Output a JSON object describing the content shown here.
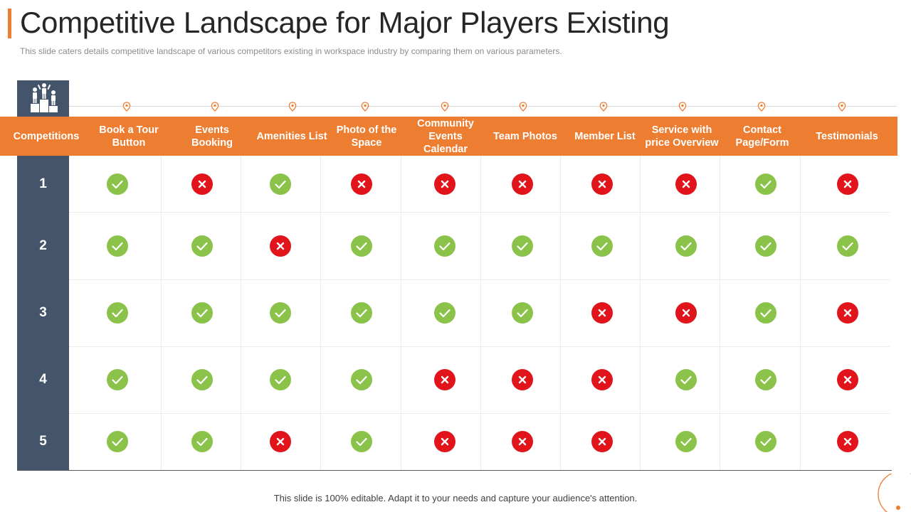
{
  "title": "Competitive Landscape for Major Players Existing",
  "subtitle": "This slide caters details competitive landscape of various  competitors existing in workspace industry by comparing them on various  parameters.",
  "table": {
    "corner_label": "Competitions",
    "columns": [
      "Book a Tour Button",
      "Events Booking",
      "Amenities List",
      "Photo of the Space",
      "Community Events Calendar",
      "Team Photos",
      "Member List",
      "Service with price Overview",
      "Contact Page/Form",
      "Testimonials"
    ],
    "rows": [
      {
        "label": "1",
        "marks": [
          true,
          false,
          true,
          false,
          false,
          false,
          false,
          false,
          true,
          false
        ]
      },
      {
        "label": "2",
        "marks": [
          true,
          true,
          false,
          true,
          true,
          true,
          true,
          true,
          true,
          true
        ]
      },
      {
        "label": "3",
        "marks": [
          true,
          true,
          true,
          true,
          true,
          true,
          false,
          false,
          true,
          false
        ]
      },
      {
        "label": "4",
        "marks": [
          true,
          true,
          true,
          true,
          false,
          false,
          false,
          true,
          true,
          false
        ]
      },
      {
        "label": "5",
        "marks": [
          true,
          true,
          false,
          true,
          false,
          false,
          false,
          true,
          true,
          false
        ]
      }
    ]
  },
  "footer": "This slide is 100% editable. Adapt it to your needs and capture your audience's attention.",
  "colors": {
    "accent": "#ED7D31",
    "dark": "#44546A",
    "check": "#8BC34A",
    "cross": "#E2141B"
  },
  "icons": {
    "header": "podium-people-icon",
    "pin": "map-pin-icon",
    "yes": "check-circle-icon",
    "no": "cross-circle-icon"
  }
}
